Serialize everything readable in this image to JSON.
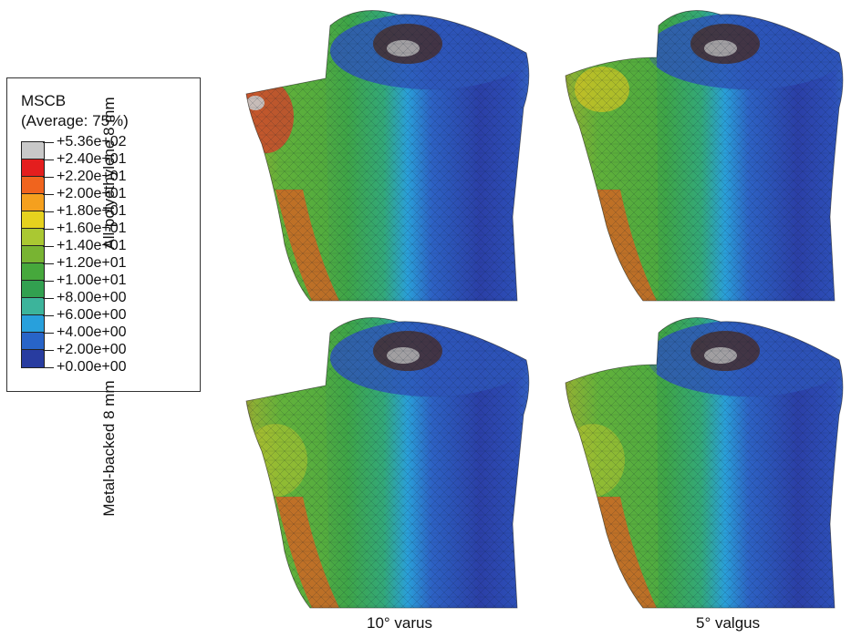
{
  "legend": {
    "title": "MSCB",
    "subtitle": "(Average: 75%)",
    "ticks": [
      "+5.36e+02",
      "+2.40e+01",
      "+2.20e+01",
      "+2.00e+01",
      "+1.80e+01",
      "+1.60e+01",
      "+1.40e+01",
      "+1.20e+01",
      "+1.00e+01",
      "+8.00e+00",
      "+6.00e+00",
      "+4.00e+00",
      "+2.00e+00",
      "+0.00e+00"
    ],
    "colors": [
      "#c8c8c8",
      "#e41e1e",
      "#f0641e",
      "#f5a01e",
      "#e6d21e",
      "#aac832",
      "#78b432",
      "#46a83c",
      "#32a050",
      "#3cb49b",
      "#28a0dc",
      "#2864c8",
      "#283ca0"
    ]
  },
  "rows": [
    "All-polyethylene 8 mm",
    "Metal-backed 8 mm"
  ],
  "columns": [
    "10° varus",
    "5° valgus"
  ],
  "panels": [
    {
      "row": 0,
      "column": 0,
      "condition": "varus",
      "implant": "all-polyethylene"
    },
    {
      "row": 0,
      "column": 1,
      "condition": "valgus",
      "implant": "all-polyethylene"
    },
    {
      "row": 1,
      "column": 0,
      "condition": "varus",
      "implant": "metal-backed"
    },
    {
      "row": 1,
      "column": 1,
      "condition": "valgus",
      "implant": "metal-backed"
    }
  ]
}
